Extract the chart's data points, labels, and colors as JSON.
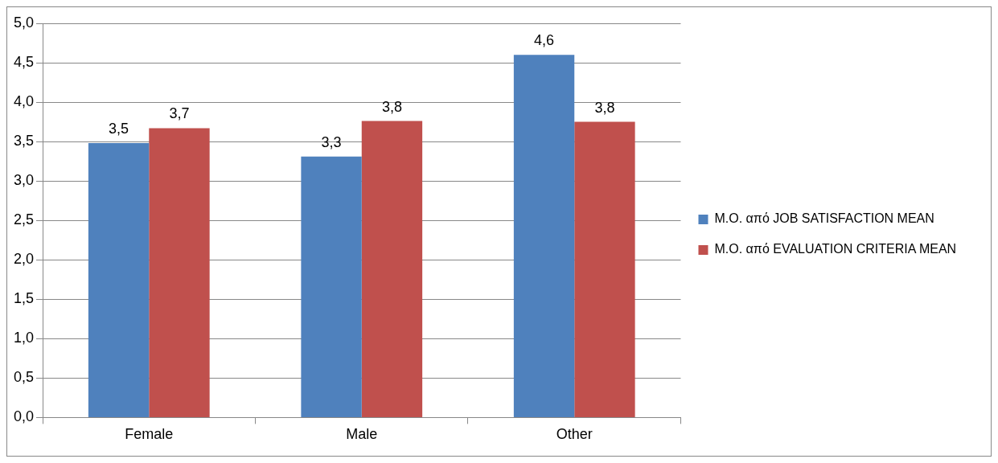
{
  "chart_data": {
    "type": "bar",
    "categories": [
      "Female",
      "Male",
      "Other"
    ],
    "series": [
      {
        "name": "Μ.Ο. από JOB SATISFACTION MEAN",
        "color": "#4f81bd",
        "values": [
          3.48,
          3.31,
          4.6
        ],
        "value_labels": [
          "3,5",
          "3,3",
          "4,6"
        ]
      },
      {
        "name": "Μ.Ο. από EVALUATION CRITERIA MEAN",
        "color": "#c0504d",
        "values": [
          3.67,
          3.76,
          3.75
        ],
        "value_labels": [
          "3,7",
          "3,8",
          "3,8"
        ]
      }
    ],
    "ylim": [
      0,
      5
    ],
    "yticks": [
      {
        "value": 0,
        "label": "0,0"
      },
      {
        "value": 0.5,
        "label": "0,5"
      },
      {
        "value": 1,
        "label": "1,0"
      },
      {
        "value": 1.5,
        "label": "1,5"
      },
      {
        "value": 2,
        "label": "2,0"
      },
      {
        "value": 2.5,
        "label": "2,5"
      },
      {
        "value": 3,
        "label": "3,0"
      },
      {
        "value": 3.5,
        "label": "3,5"
      },
      {
        "value": 4,
        "label": "4,0"
      },
      {
        "value": 4.5,
        "label": "4,5"
      },
      {
        "value": 5,
        "label": "5,0"
      }
    ],
    "grid": "y",
    "legend": "right"
  }
}
